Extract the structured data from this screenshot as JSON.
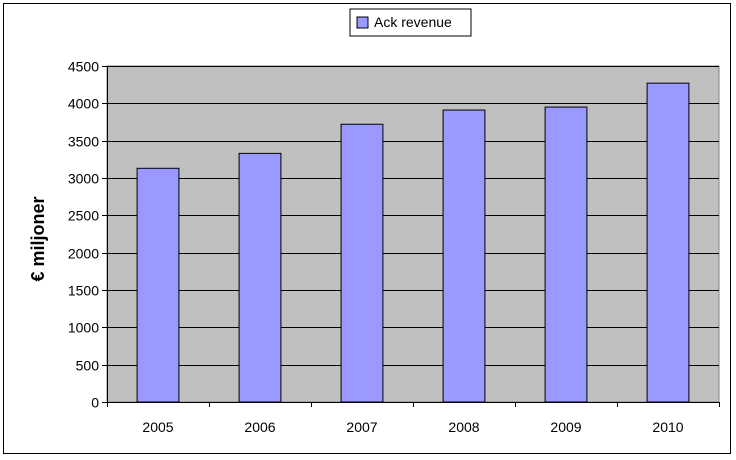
{
  "chart_data": {
    "type": "bar",
    "title": "",
    "xlabel": "",
    "ylabel": "€ miljoner",
    "categories": [
      "2005",
      "2006",
      "2007",
      "2008",
      "2009",
      "2010"
    ],
    "series": [
      {
        "name": "Ack revenue",
        "values": [
          3130,
          3330,
          3720,
          3910,
          3950,
          4270
        ]
      }
    ],
    "ylim": [
      0,
      4500
    ],
    "yticks": [
      0,
      500,
      1000,
      1500,
      2000,
      2500,
      3000,
      3500,
      4000,
      4500
    ],
    "grid": true,
    "legend_position": "top-center",
    "colors": {
      "bar_fill": "#9999ff",
      "bar_stroke": "#000000",
      "plot_background": "#c0c0c0",
      "gridline": "#000000"
    }
  }
}
